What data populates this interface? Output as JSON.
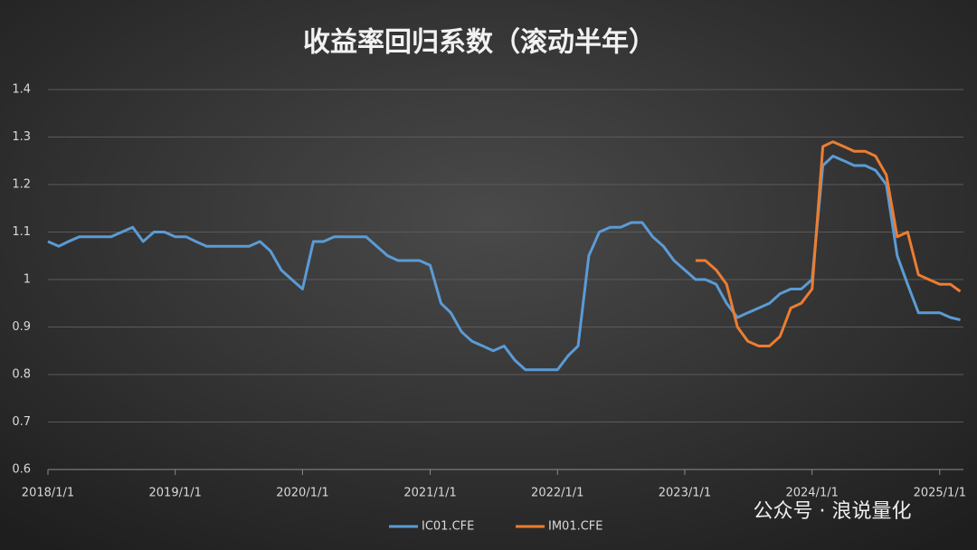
{
  "chart_data": {
    "type": "line",
    "title": "收益率回归系数（滚动半年）",
    "x": [
      "2018/1/1",
      "2018/2/1",
      "2018/3/1",
      "2018/4/1",
      "2018/5/1",
      "2018/6/1",
      "2018/7/1",
      "2018/8/1",
      "2018/9/1",
      "2018/10/1",
      "2018/11/1",
      "2018/12/1",
      "2019/1/1",
      "2019/2/1",
      "2019/3/1",
      "2019/4/1",
      "2019/5/1",
      "2019/6/1",
      "2019/7/1",
      "2019/8/1",
      "2019/9/1",
      "2019/10/1",
      "2019/11/1",
      "2019/12/1",
      "2020/1/1",
      "2020/2/1",
      "2020/3/1",
      "2020/4/1",
      "2020/5/1",
      "2020/6/1",
      "2020/7/1",
      "2020/8/1",
      "2020/9/1",
      "2020/10/1",
      "2020/11/1",
      "2020/12/1",
      "2021/1/1",
      "2021/2/1",
      "2021/3/1",
      "2021/4/1",
      "2021/5/1",
      "2021/6/1",
      "2021/7/1",
      "2021/8/1",
      "2021/9/1",
      "2021/10/1",
      "2021/11/1",
      "2021/12/1",
      "2022/1/1",
      "2022/2/1",
      "2022/3/1",
      "2022/4/1",
      "2022/5/1",
      "2022/6/1",
      "2022/7/1",
      "2022/8/1",
      "2022/9/1",
      "2022/10/1",
      "2022/11/1",
      "2022/12/1",
      "2023/1/1",
      "2023/2/1",
      "2023/3/1",
      "2023/4/1",
      "2023/5/1",
      "2023/6/1",
      "2023/7/1",
      "2023/8/1",
      "2023/9/1",
      "2023/10/1",
      "2023/11/1",
      "2023/12/1",
      "2024/1/1",
      "2024/2/1",
      "2024/3/1",
      "2024/4/1",
      "2024/5/1",
      "2024/6/1",
      "2024/7/1",
      "2024/8/1",
      "2024/9/1",
      "2024/10/1",
      "2024/11/1",
      "2024/12/1",
      "2025/1/1",
      "2025/2/1",
      "2025/3/1"
    ],
    "series": [
      {
        "name": "IC01.CFE",
        "color": "#5b9bd5",
        "values": [
          1.08,
          1.07,
          1.08,
          1.09,
          1.09,
          1.09,
          1.09,
          1.1,
          1.11,
          1.08,
          1.1,
          1.1,
          1.09,
          1.09,
          1.08,
          1.07,
          1.07,
          1.07,
          1.07,
          1.07,
          1.08,
          1.06,
          1.02,
          1.0,
          0.98,
          1.08,
          1.08,
          1.09,
          1.09,
          1.09,
          1.09,
          1.07,
          1.05,
          1.04,
          1.04,
          1.04,
          1.03,
          0.95,
          0.93,
          0.89,
          0.87,
          0.86,
          0.85,
          0.86,
          0.83,
          0.81,
          0.81,
          0.81,
          0.81,
          0.84,
          0.86,
          1.05,
          1.1,
          1.11,
          1.11,
          1.12,
          1.12,
          1.09,
          1.07,
          1.04,
          1.02,
          1.0,
          1.0,
          0.99,
          0.95,
          0.92,
          0.93,
          0.94,
          0.95,
          0.97,
          0.98,
          0.98,
          1.0,
          1.24,
          1.26,
          1.25,
          1.24,
          1.24,
          1.23,
          1.2,
          1.05,
          0.99,
          0.93,
          0.93,
          0.93,
          0.92,
          0.915
        ]
      },
      {
        "name": "IM01.CFE",
        "color": "#ed7d31",
        "values": [
          null,
          null,
          null,
          null,
          null,
          null,
          null,
          null,
          null,
          null,
          null,
          null,
          null,
          null,
          null,
          null,
          null,
          null,
          null,
          null,
          null,
          null,
          null,
          null,
          null,
          null,
          null,
          null,
          null,
          null,
          null,
          null,
          null,
          null,
          null,
          null,
          null,
          null,
          null,
          null,
          null,
          null,
          null,
          null,
          null,
          null,
          null,
          null,
          null,
          null,
          null,
          null,
          null,
          null,
          null,
          null,
          null,
          null,
          null,
          null,
          null,
          1.04,
          1.04,
          1.02,
          0.99,
          0.9,
          0.87,
          0.86,
          0.86,
          0.88,
          0.94,
          0.95,
          0.98,
          1.28,
          1.29,
          1.28,
          1.27,
          1.27,
          1.26,
          1.22,
          1.09,
          1.1,
          1.01,
          1.0,
          0.99,
          0.99,
          0.975
        ]
      }
    ],
    "xlim": [
      "2018/1/1",
      "2025/3/10"
    ],
    "xticks": [
      "2018/1/1",
      "2019/1/1",
      "2020/1/1",
      "2021/1/1",
      "2022/1/1",
      "2023/1/1",
      "2024/1/1",
      "2025/1/1"
    ],
    "ylim": [
      0.6,
      1.4
    ],
    "yticks": [
      0.6,
      0.7,
      0.8,
      0.9,
      1,
      1.1,
      1.2,
      1.3,
      1.4
    ],
    "grid": true,
    "legend": "bottom",
    "watermark": "公众号 · 浪说量化"
  }
}
